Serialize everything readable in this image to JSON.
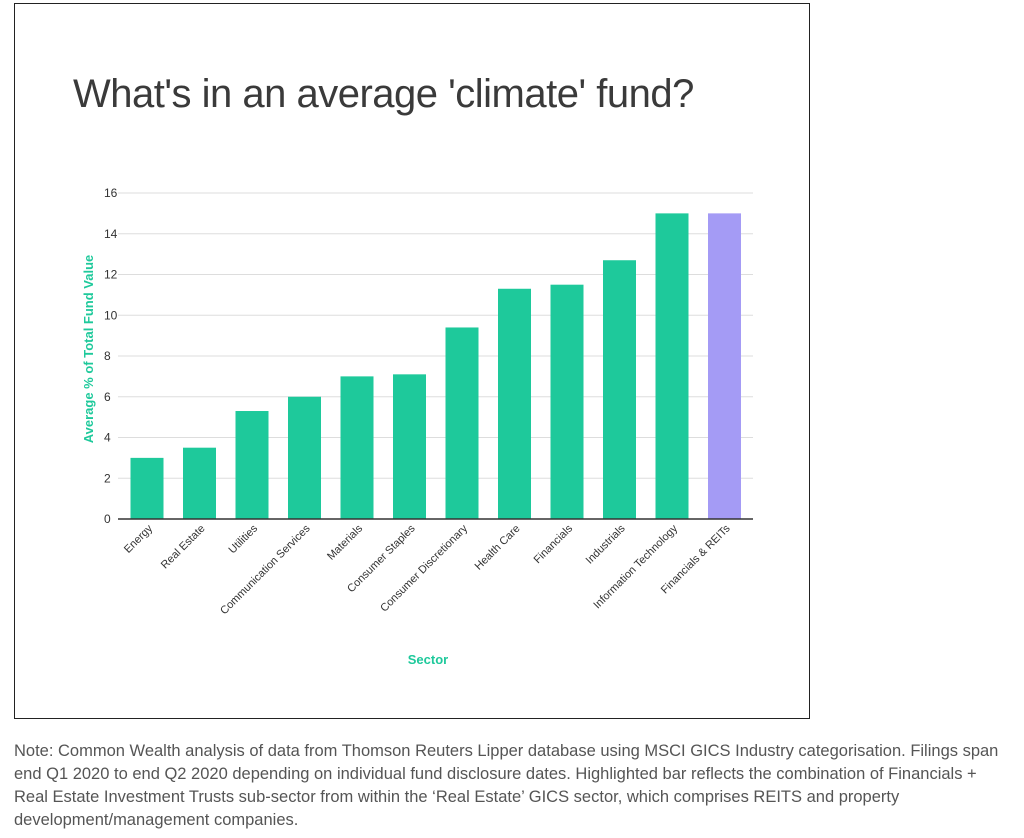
{
  "chart_data": {
    "type": "bar",
    "title": "What's in an average 'climate' fund?",
    "xlabel": "Sector",
    "ylabel": "Average % of Total Fund Value",
    "ylim": [
      0,
      16
    ],
    "yticks": [
      0,
      2,
      4,
      6,
      8,
      10,
      12,
      14,
      16
    ],
    "grid": true,
    "categories": [
      "Energy",
      "Real Estate",
      "Utilities",
      "Communication Services",
      "Materials",
      "Consumer Staples",
      "Consumer Discretionary",
      "Health Care",
      "Financials",
      "Industrials",
      "Information Technology",
      "Financials & REITs"
    ],
    "values": [
      3.0,
      3.5,
      5.3,
      6.0,
      7.0,
      7.1,
      9.4,
      11.3,
      11.5,
      12.7,
      15.0,
      15.0
    ],
    "highlight_index": 11,
    "colors": {
      "bar": "#1ec99b",
      "highlight": "#a49bf5",
      "axis_label": "#1ec99b",
      "grid": "#dddddd"
    }
  },
  "note": "Note: Common Wealth analysis of data from Thomson Reuters Lipper database using MSCI GICS Industry categorisation. Filings span end Q1 2020 to end Q2 2020 depending on individual fund disclosure dates. Highlighted bar reflects the combination of Financials + Real Estate Investment Trusts sub-sector from within the ‘Real Estate’ GICS sector, which comprises REITS and property development/management companies."
}
